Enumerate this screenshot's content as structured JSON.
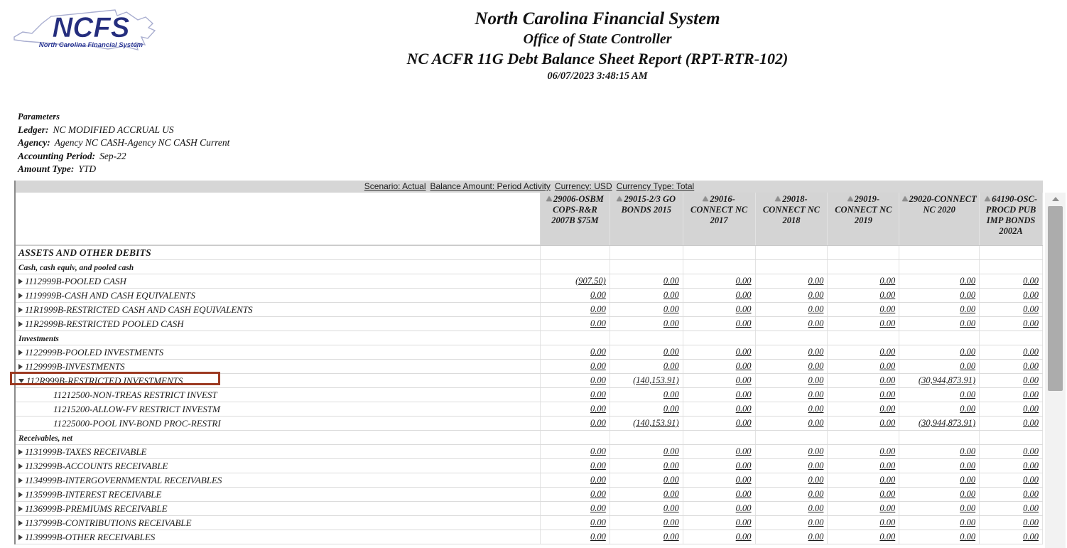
{
  "logo": {
    "acronym": "NCFS",
    "subtitle": "North Carolina Financial System"
  },
  "title_block": {
    "line1": "North Carolina Financial System",
    "line2": "Office of State Controller",
    "line3": "NC ACFR 11G Debt Balance Sheet Report (RPT-RTR-102)",
    "timestamp": "06/07/2023 3:48:15 AM"
  },
  "parameters": {
    "heading": "Parameters",
    "items": [
      {
        "label": "Ledger:",
        "value": "NC MODIFIED ACCRUAL US"
      },
      {
        "label": "Agency:",
        "value": "Agency NC CASH-Agency NC CASH Current"
      },
      {
        "label": "Accounting Period:",
        "value": "Sep-22"
      },
      {
        "label": "Amount Type:",
        "value": "YTD"
      }
    ]
  },
  "scenario_bar": {
    "segments": [
      "Scenario: Actual",
      "Balance Amount: Period Activity",
      "Currency: USD",
      "Currency Type: Total"
    ]
  },
  "colors": {
    "header_bg": "#d4d4d4",
    "highlight_border": "#9c3a22",
    "logo_navy": "#252e7e"
  },
  "table": {
    "columns": [
      "29006-OSBM COPS-R&R 2007B $75M",
      "29015-2/3 GO BONDS 2015",
      "29016-CONNECT NC 2017",
      "29018-CONNECT NC 2018",
      "29019-CONNECT NC 2019",
      "29020-CONNECT NC 2020",
      "64190-OSC-PROCD PUB IMP BONDS 2002A"
    ],
    "rows": [
      {
        "type": "section",
        "label": "ASSETS AND OTHER DEBITS"
      },
      {
        "type": "subsection",
        "label": "Cash, cash equiv, and pooled cash"
      },
      {
        "type": "account",
        "expand": "collapsed",
        "label": "1112999B-POOLED CASH",
        "values": [
          "(907.50)",
          "0.00",
          "0.00",
          "0.00",
          "0.00",
          "0.00",
          "0.00"
        ]
      },
      {
        "type": "account",
        "expand": "collapsed",
        "label": "1119999B-CASH AND CASH EQUIVALENTS",
        "values": [
          "0.00",
          "0.00",
          "0.00",
          "0.00",
          "0.00",
          "0.00",
          "0.00"
        ]
      },
      {
        "type": "account",
        "expand": "collapsed",
        "label": "11R1999B-RESTRICTED CASH AND CASH EQUIVALENTS",
        "values": [
          "0.00",
          "0.00",
          "0.00",
          "0.00",
          "0.00",
          "0.00",
          "0.00"
        ]
      },
      {
        "type": "account",
        "expand": "collapsed",
        "label": "11R2999B-RESTRICTED POOLED CASH",
        "values": [
          "0.00",
          "0.00",
          "0.00",
          "0.00",
          "0.00",
          "0.00",
          "0.00"
        ]
      },
      {
        "type": "subsection",
        "label": "Investments"
      },
      {
        "type": "account",
        "expand": "collapsed",
        "label": "1122999B-POOLED INVESTMENTS",
        "values": [
          "0.00",
          "0.00",
          "0.00",
          "0.00",
          "0.00",
          "0.00",
          "0.00"
        ]
      },
      {
        "type": "account",
        "expand": "collapsed",
        "label": "1129999B-INVESTMENTS",
        "values": [
          "0.00",
          "0.00",
          "0.00",
          "0.00",
          "0.00",
          "0.00",
          "0.00"
        ]
      },
      {
        "type": "account",
        "expand": "expanded",
        "highlight": true,
        "label": "112R999B-RESTRICTED INVESTMENTS",
        "values": [
          "0.00",
          "(140,153.91)",
          "0.00",
          "0.00",
          "0.00",
          "(30,944,873.91)",
          "0.00"
        ]
      },
      {
        "type": "child",
        "label": "11212500-NON-TREAS RESTRICT INVEST",
        "values": [
          "0.00",
          "0.00",
          "0.00",
          "0.00",
          "0.00",
          "0.00",
          "0.00"
        ]
      },
      {
        "type": "child",
        "label": "11215200-ALLOW-FV RESTRICT INVESTM",
        "values": [
          "0.00",
          "0.00",
          "0.00",
          "0.00",
          "0.00",
          "0.00",
          "0.00"
        ]
      },
      {
        "type": "child",
        "label": "11225000-POOL INV-BOND PROC-RESTRI",
        "values": [
          "0.00",
          "(140,153.91)",
          "0.00",
          "0.00",
          "0.00",
          "(30,944,873.91)",
          "0.00"
        ]
      },
      {
        "type": "subsection",
        "label": "Receivables, net"
      },
      {
        "type": "account",
        "expand": "collapsed",
        "label": "1131999B-TAXES RECEIVABLE",
        "values": [
          "0.00",
          "0.00",
          "0.00",
          "0.00",
          "0.00",
          "0.00",
          "0.00"
        ]
      },
      {
        "type": "account",
        "expand": "collapsed",
        "label": "1132999B-ACCOUNTS RECEIVABLE",
        "values": [
          "0.00",
          "0.00",
          "0.00",
          "0.00",
          "0.00",
          "0.00",
          "0.00"
        ]
      },
      {
        "type": "account",
        "expand": "collapsed",
        "label": "1134999B-INTERGOVERNMENTAL RECEIVABLES",
        "values": [
          "0.00",
          "0.00",
          "0.00",
          "0.00",
          "0.00",
          "0.00",
          "0.00"
        ]
      },
      {
        "type": "account",
        "expand": "collapsed",
        "label": "1135999B-INTEREST RECEIVABLE",
        "values": [
          "0.00",
          "0.00",
          "0.00",
          "0.00",
          "0.00",
          "0.00",
          "0.00"
        ]
      },
      {
        "type": "account",
        "expand": "collapsed",
        "label": "1136999B-PREMIUMS RECEIVABLE",
        "values": [
          "0.00",
          "0.00",
          "0.00",
          "0.00",
          "0.00",
          "0.00",
          "0.00"
        ]
      },
      {
        "type": "account",
        "expand": "collapsed",
        "label": "1137999B-CONTRIBUTIONS RECEIVABLE",
        "values": [
          "0.00",
          "0.00",
          "0.00",
          "0.00",
          "0.00",
          "0.00",
          "0.00"
        ]
      },
      {
        "type": "account",
        "expand": "collapsed",
        "label": "1139999B-OTHER RECEIVABLES",
        "values": [
          "0.00",
          "0.00",
          "0.00",
          "0.00",
          "0.00",
          "0.00",
          "0.00"
        ]
      }
    ]
  }
}
